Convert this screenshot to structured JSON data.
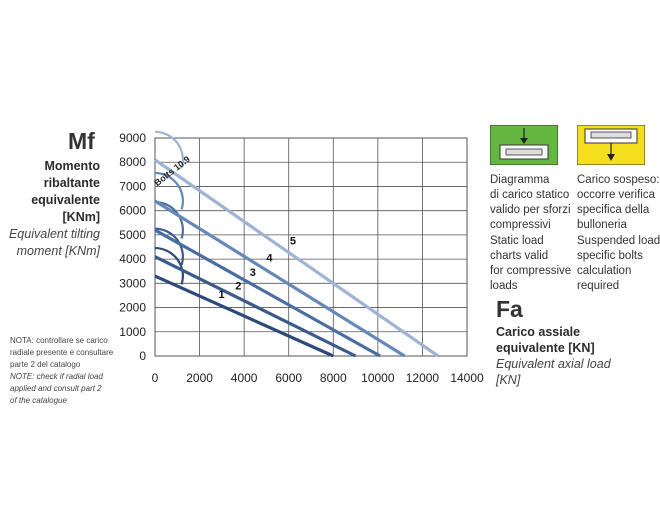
{
  "chart_data": {
    "type": "line",
    "title": "",
    "y_symbol": "Mf",
    "ylabel": [
      "Momento",
      "ribaltante",
      "equivalente",
      "[KNm]"
    ],
    "ylabel_en": [
      "Equivalent tilting",
      "moment [KNm]"
    ],
    "x_symbol": "Fa",
    "xlabel": [
      "Carico assiale",
      "equivalente [KN]"
    ],
    "xlabel_en": [
      "Equivalent axial load",
      "[KN]"
    ],
    "xlim": [
      0,
      14000
    ],
    "ylim": [
      0,
      9000
    ],
    "x_ticks": [
      "0",
      "2000",
      "4000",
      "6000",
      "8000",
      "10000",
      "12000",
      "14000"
    ],
    "y_ticks": [
      "0",
      "1000",
      "2000",
      "3000",
      "4000",
      "5000",
      "6000",
      "7000",
      "8000",
      "9000"
    ],
    "grid": true,
    "series": [
      {
        "name": "1",
        "color": "#2e4a7a",
        "x": [
          0,
          8000
        ],
        "y": [
          3300,
          0
        ],
        "label_at": [
          2850,
          2400
        ]
      },
      {
        "name": "2",
        "color": "#3a5b8c",
        "x": [
          0,
          9000
        ],
        "y": [
          4100,
          0
        ],
        "label_at": [
          3600,
          2750
        ]
      },
      {
        "name": "3",
        "color": "#4a6e9f",
        "x": [
          0,
          10100
        ],
        "y": [
          5200,
          0
        ],
        "label_at": [
          4250,
          3300
        ]
      },
      {
        "name": "4",
        "color": "#6688b8",
        "x": [
          0,
          11200
        ],
        "y": [
          6400,
          0
        ],
        "label_at": [
          5000,
          3900
        ]
      },
      {
        "name": "5",
        "color": "#9fb4d4",
        "x": [
          0,
          12700
        ],
        "y": [
          8100,
          0
        ],
        "label_at": [
          6050,
          4600
        ]
      }
    ],
    "annotation": {
      "text": "Bolts 10.9"
    },
    "bolt_arcs": [
      {
        "cx": 0,
        "cy": 3300,
        "color": "#2e4a7a"
      },
      {
        "cx": 0,
        "cy": 4100,
        "color": "#3a5b8c"
      },
      {
        "cx": 0,
        "cy": 5200,
        "color": "#4a6e9f"
      },
      {
        "cx": 0,
        "cy": 6400,
        "color": "#6688b8"
      },
      {
        "cx": 0,
        "cy": 8100,
        "color": "#9fb4d4"
      }
    ]
  },
  "note": {
    "it": [
      "NOTA: controllare se carico",
      "radiale presente e consultare",
      "parte 2 del catalogo"
    ],
    "en": [
      "NOTE: check if radial load",
      "applied and consult part 2",
      "of the catalogue"
    ]
  },
  "legend_compressive": {
    "color": "#64b842",
    "it": [
      "Diagramma",
      "di carico statico",
      "valido per sforzi",
      "compressivi"
    ],
    "en": [
      "Static load",
      "charts valid",
      "for compressive",
      "loads"
    ]
  },
  "legend_suspended": {
    "color": "#f5de1e",
    "it": [
      "Carico sospeso:",
      "occorre verifica",
      "specifica della",
      "bulloneria"
    ],
    "en": [
      "Suspended load:",
      "specific bolts",
      "calculation",
      "required"
    ]
  }
}
